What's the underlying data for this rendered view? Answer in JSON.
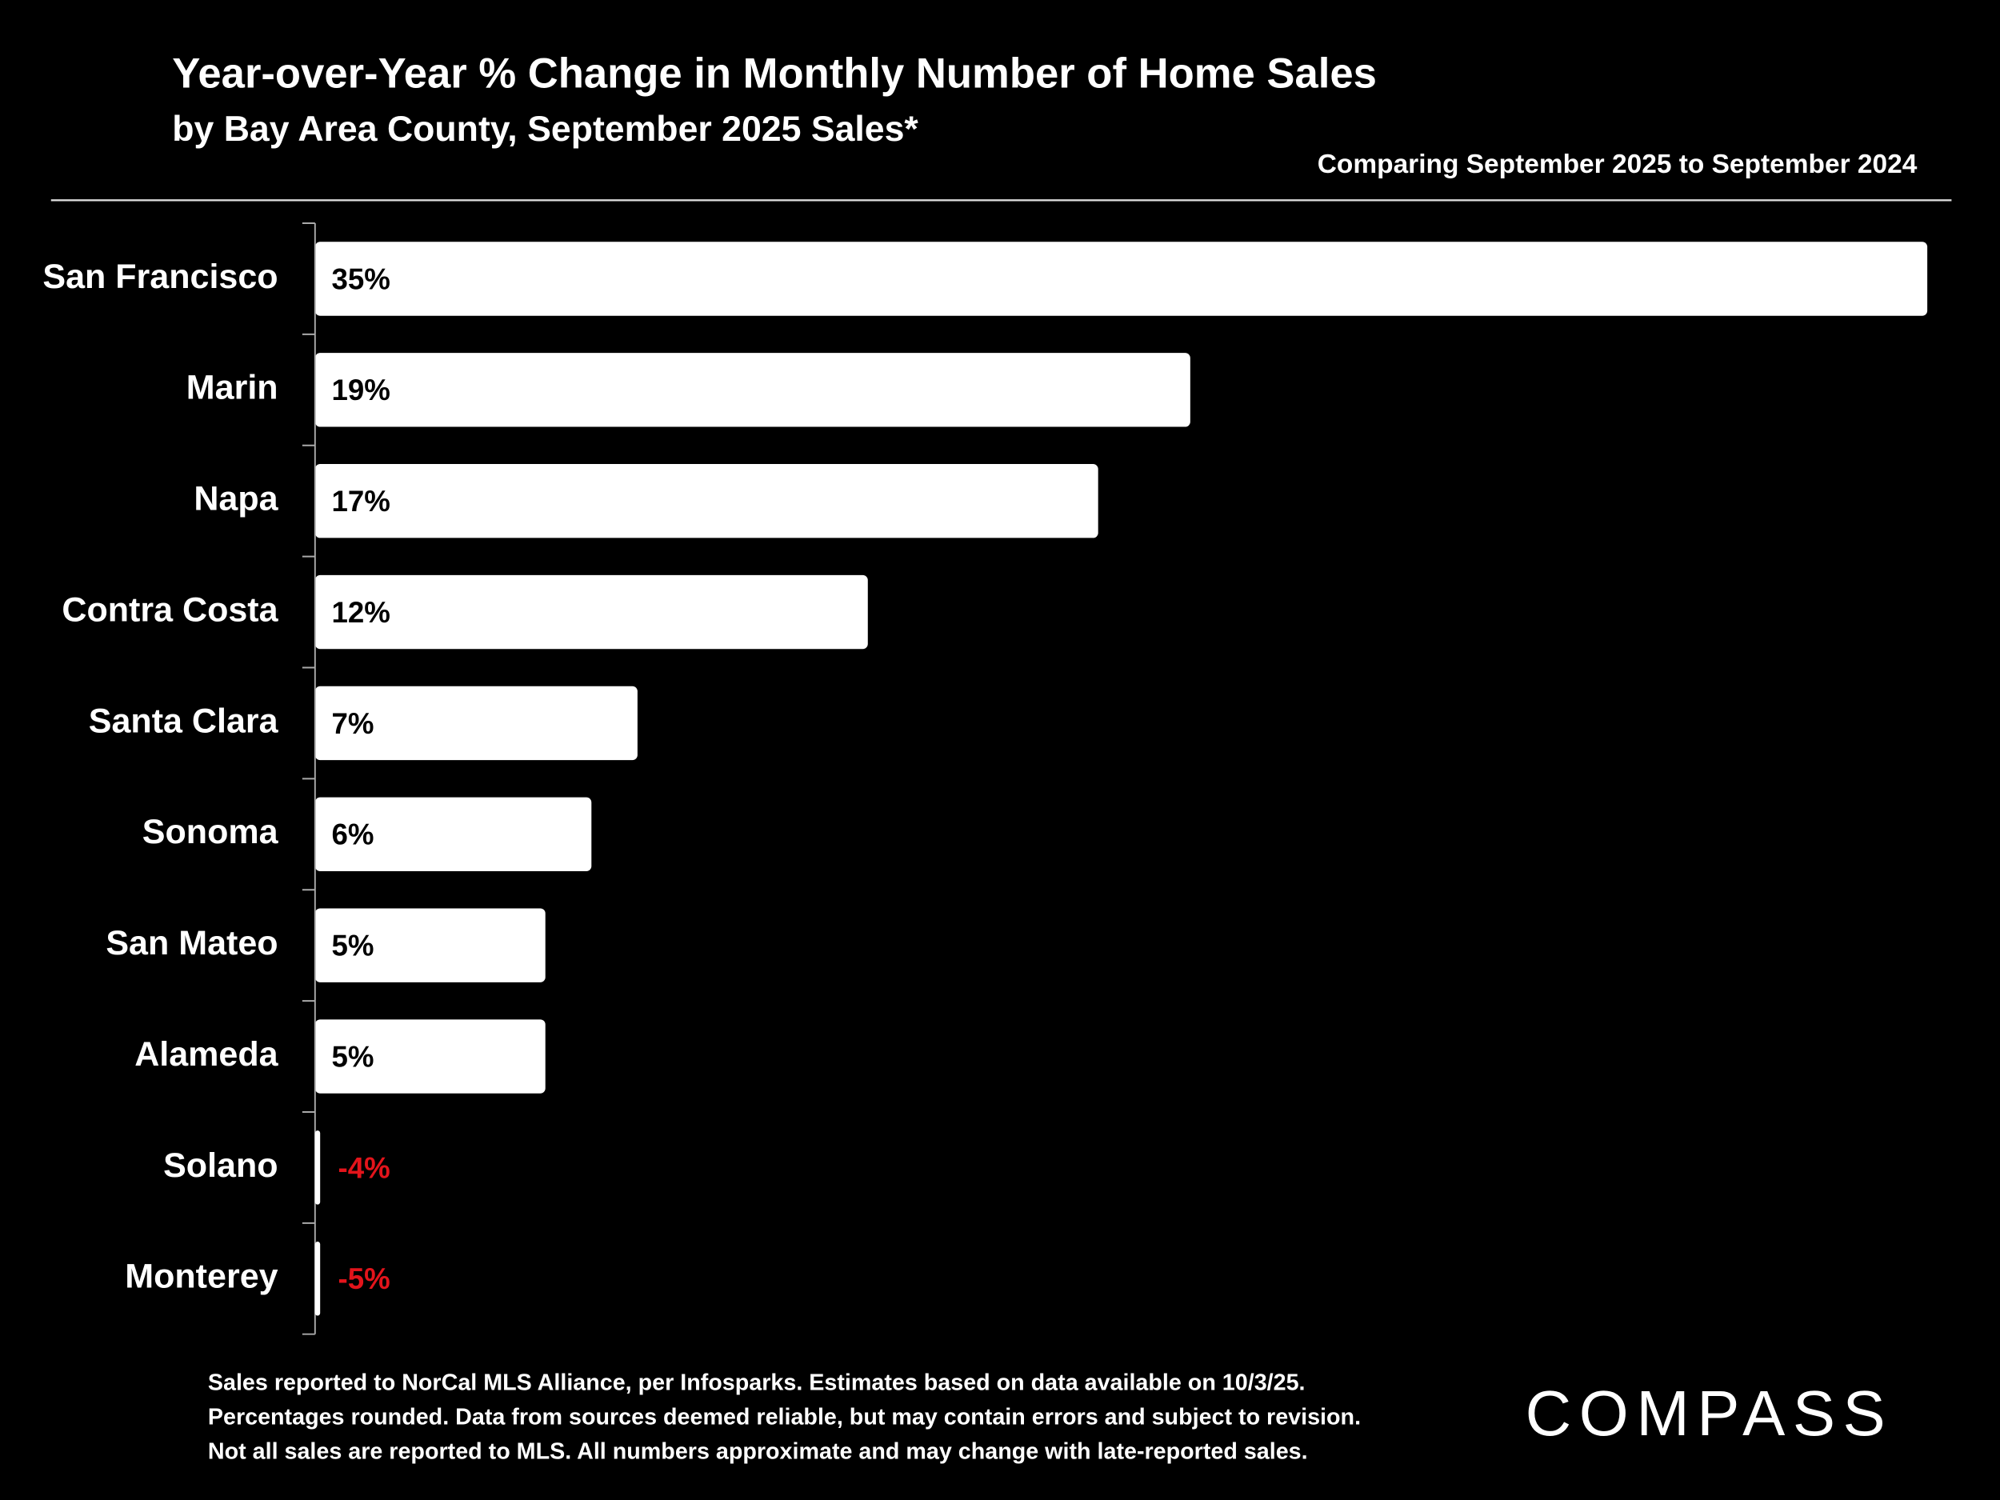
{
  "chart_data": {
    "type": "bar",
    "title": "Year-over-Year % Change in Monthly Number of Home Sales",
    "subtitle": "by Bay Area County, September 2025 Sales*",
    "note": "Comparing September 2025 to September 2024",
    "categories": [
      "San Francisco",
      "Marin",
      "Napa",
      "Contra Costa",
      "Santa Clara",
      "Sonoma",
      "San Mateo",
      "Alameda",
      "Solano",
      "Monterey"
    ],
    "values": [
      35,
      19,
      17,
      12,
      7,
      6,
      5,
      5,
      -4,
      -5
    ],
    "value_labels": [
      "35%",
      "19%",
      "17%",
      "12%",
      "7%",
      "6%",
      "5%",
      "5%",
      "-4%",
      "-5%"
    ],
    "color": "#ffffff",
    "label_color": "#000000",
    "negative_label_color": "#e3141b",
    "xlim": [
      0,
      35
    ],
    "footnote": [
      "Sales reported to NorCal MLS Alliance, per Infosparks. Estimates based on data available on 10/3/25.",
      "Percentages rounded. Data from sources deemed reliable, but may contain errors and subject to revision.",
      "Not all sales are reported to MLS. All numbers approximate and may change with late-reported sales."
    ],
    "brand": "COMPASS"
  }
}
